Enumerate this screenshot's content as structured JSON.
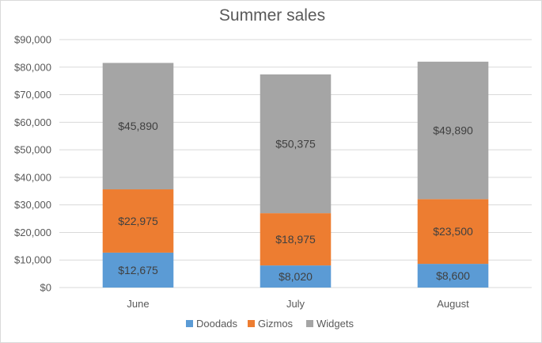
{
  "chart_data": {
    "type": "bar",
    "stacked": true,
    "title": "Summer sales",
    "categories": [
      "June",
      "July",
      "August"
    ],
    "series": [
      {
        "name": "Doodads",
        "values": [
          12675,
          8020,
          8600
        ],
        "labels": [
          "$12,675",
          "$8,020",
          "$8,600"
        ],
        "color": "#5b9bd5"
      },
      {
        "name": "Gizmos",
        "values": [
          22975,
          18975,
          23500
        ],
        "labels": [
          "$22,975",
          "$18,975",
          "$23,500"
        ],
        "color": "#ed7d31"
      },
      {
        "name": "Widgets",
        "values": [
          45890,
          50375,
          49890
        ],
        "labels": [
          "$45,890",
          "$50,375",
          "$49,890"
        ],
        "color": "#a5a5a5"
      }
    ],
    "ylim": [
      0,
      90000
    ],
    "yticks": [
      0,
      10000,
      20000,
      30000,
      40000,
      50000,
      60000,
      70000,
      80000,
      90000
    ],
    "ytick_labels": [
      "$0",
      "$10,000",
      "$20,000",
      "$30,000",
      "$40,000",
      "$50,000",
      "$60,000",
      "$70,000",
      "$80,000",
      "$90,000"
    ],
    "grid": true,
    "legend": "bottom"
  }
}
